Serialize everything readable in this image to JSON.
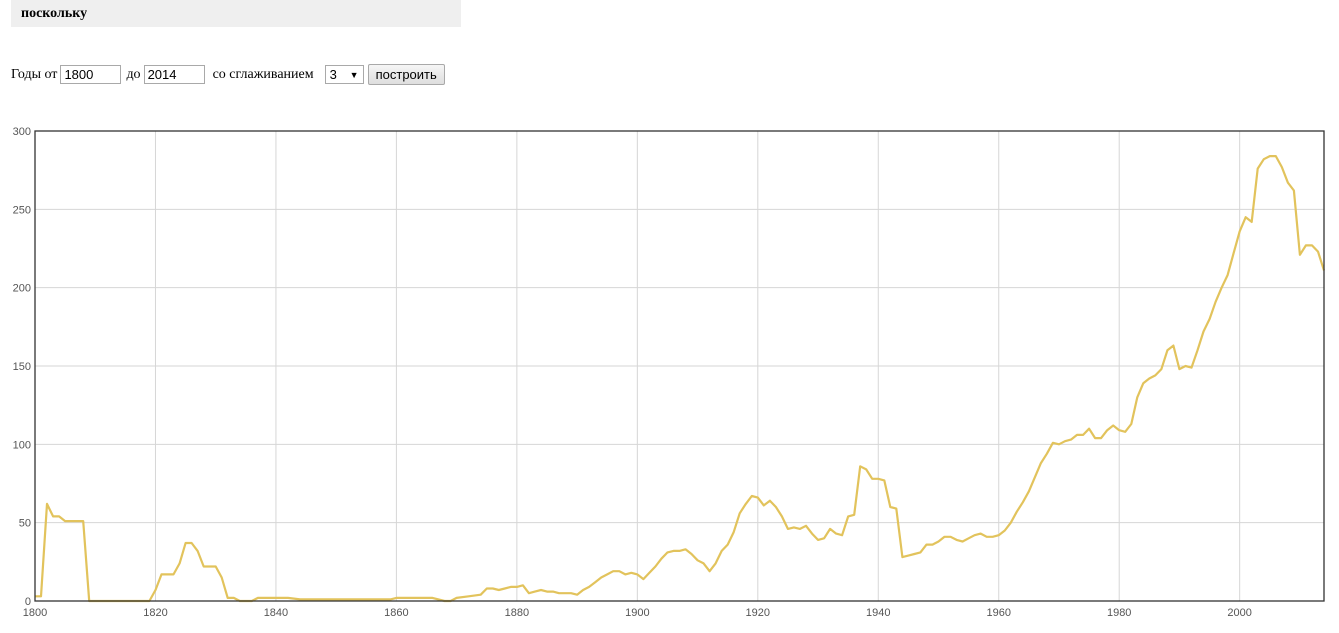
{
  "query": {
    "word": "поскольку"
  },
  "controls": {
    "years_from_label": "Годы от",
    "year_from": "1800",
    "to_label": "до",
    "year_to": "2014",
    "smoothing_label": "со сглаживанием",
    "smoothing_value": "3",
    "build_button": "построить"
  },
  "chart_data": {
    "type": "line",
    "xlim": [
      1800,
      2014
    ],
    "ylim": [
      0,
      300
    ],
    "x_ticks": [
      1800,
      1820,
      1840,
      1860,
      1880,
      1900,
      1920,
      1940,
      1960,
      1980,
      2000
    ],
    "y_ticks": [
      0,
      50,
      100,
      150,
      200,
      250,
      300
    ],
    "grid": true,
    "line_color": "#e2c35c",
    "series": [
      {
        "points": [
          [
            1800,
            3
          ],
          [
            1801,
            3
          ],
          [
            1802,
            62
          ],
          [
            1803,
            54
          ],
          [
            1804,
            54
          ],
          [
            1805,
            51
          ],
          [
            1806,
            51
          ],
          [
            1807,
            51
          ],
          [
            1808,
            51
          ],
          [
            1809,
            0
          ],
          [
            1810,
            0
          ],
          [
            1812,
            0
          ],
          [
            1814,
            0
          ],
          [
            1816,
            0
          ],
          [
            1818,
            0
          ],
          [
            1819,
            0
          ],
          [
            1820,
            7
          ],
          [
            1821,
            17
          ],
          [
            1822,
            17
          ],
          [
            1823,
            17
          ],
          [
            1824,
            24
          ],
          [
            1825,
            37
          ],
          [
            1826,
            37
          ],
          [
            1827,
            32
          ],
          [
            1828,
            22
          ],
          [
            1829,
            22
          ],
          [
            1830,
            22
          ],
          [
            1831,
            15
          ],
          [
            1832,
            2
          ],
          [
            1833,
            2
          ],
          [
            1834,
            0
          ],
          [
            1836,
            0
          ],
          [
            1837,
            2
          ],
          [
            1838,
            2
          ],
          [
            1840,
            2
          ],
          [
            1842,
            2
          ],
          [
            1844,
            1
          ],
          [
            1848,
            1
          ],
          [
            1852,
            1
          ],
          [
            1856,
            1
          ],
          [
            1859,
            1
          ],
          [
            1860,
            2
          ],
          [
            1862,
            2
          ],
          [
            1864,
            2
          ],
          [
            1866,
            2
          ],
          [
            1868,
            0
          ],
          [
            1869,
            0
          ],
          [
            1870,
            2
          ],
          [
            1872,
            3
          ],
          [
            1874,
            4
          ],
          [
            1875,
            8
          ],
          [
            1876,
            8
          ],
          [
            1877,
            7
          ],
          [
            1878,
            8
          ],
          [
            1879,
            9
          ],
          [
            1880,
            9
          ],
          [
            1881,
            10
          ],
          [
            1882,
            5
          ],
          [
            1883,
            6
          ],
          [
            1884,
            7
          ],
          [
            1885,
            6
          ],
          [
            1886,
            6
          ],
          [
            1887,
            5
          ],
          [
            1888,
            5
          ],
          [
            1889,
            5
          ],
          [
            1890,
            4
          ],
          [
            1891,
            7
          ],
          [
            1892,
            9
          ],
          [
            1893,
            12
          ],
          [
            1894,
            15
          ],
          [
            1895,
            17
          ],
          [
            1896,
            19
          ],
          [
            1897,
            19
          ],
          [
            1898,
            17
          ],
          [
            1899,
            18
          ],
          [
            1900,
            17
          ],
          [
            1901,
            14
          ],
          [
            1902,
            18
          ],
          [
            1903,
            22
          ],
          [
            1904,
            27
          ],
          [
            1905,
            31
          ],
          [
            1906,
            32
          ],
          [
            1907,
            32
          ],
          [
            1908,
            33
          ],
          [
            1909,
            30
          ],
          [
            1910,
            26
          ],
          [
            1911,
            24
          ],
          [
            1912,
            19
          ],
          [
            1913,
            24
          ],
          [
            1914,
            32
          ],
          [
            1915,
            36
          ],
          [
            1916,
            44
          ],
          [
            1917,
            56
          ],
          [
            1918,
            62
          ],
          [
            1919,
            67
          ],
          [
            1920,
            66
          ],
          [
            1921,
            61
          ],
          [
            1922,
            64
          ],
          [
            1923,
            60
          ],
          [
            1924,
            54
          ],
          [
            1925,
            46
          ],
          [
            1926,
            47
          ],
          [
            1927,
            46
          ],
          [
            1928,
            48
          ],
          [
            1929,
            43
          ],
          [
            1930,
            39
          ],
          [
            1931,
            40
          ],
          [
            1932,
            46
          ],
          [
            1933,
            43
          ],
          [
            1934,
            42
          ],
          [
            1935,
            54
          ],
          [
            1936,
            55
          ],
          [
            1937,
            86
          ],
          [
            1938,
            84
          ],
          [
            1939,
            78
          ],
          [
            1940,
            78
          ],
          [
            1941,
            77
          ],
          [
            1942,
            60
          ],
          [
            1943,
            59
          ],
          [
            1944,
            28
          ],
          [
            1945,
            29
          ],
          [
            1946,
            30
          ],
          [
            1947,
            31
          ],
          [
            1948,
            36
          ],
          [
            1949,
            36
          ],
          [
            1950,
            38
          ],
          [
            1951,
            41
          ],
          [
            1952,
            41
          ],
          [
            1953,
            39
          ],
          [
            1954,
            38
          ],
          [
            1955,
            40
          ],
          [
            1956,
            42
          ],
          [
            1957,
            43
          ],
          [
            1958,
            41
          ],
          [
            1959,
            41
          ],
          [
            1960,
            42
          ],
          [
            1961,
            45
          ],
          [
            1962,
            50
          ],
          [
            1963,
            57
          ],
          [
            1964,
            63
          ],
          [
            1965,
            70
          ],
          [
            1966,
            79
          ],
          [
            1967,
            88
          ],
          [
            1968,
            94
          ],
          [
            1969,
            101
          ],
          [
            1970,
            100
          ],
          [
            1971,
            102
          ],
          [
            1972,
            103
          ],
          [
            1973,
            106
          ],
          [
            1974,
            106
          ],
          [
            1975,
            110
          ],
          [
            1976,
            104
          ],
          [
            1977,
            104
          ],
          [
            1978,
            109
          ],
          [
            1979,
            112
          ],
          [
            1980,
            109
          ],
          [
            1981,
            108
          ],
          [
            1982,
            113
          ],
          [
            1983,
            130
          ],
          [
            1984,
            139
          ],
          [
            1985,
            142
          ],
          [
            1986,
            144
          ],
          [
            1987,
            148
          ],
          [
            1988,
            160
          ],
          [
            1989,
            163
          ],
          [
            1990,
            148
          ],
          [
            1991,
            150
          ],
          [
            1992,
            149
          ],
          [
            1993,
            160
          ],
          [
            1994,
            172
          ],
          [
            1995,
            180
          ],
          [
            1996,
            191
          ],
          [
            1997,
            200
          ],
          [
            1998,
            208
          ],
          [
            1999,
            222
          ],
          [
            2000,
            236
          ],
          [
            2001,
            245
          ],
          [
            2002,
            242
          ],
          [
            2003,
            276
          ],
          [
            2004,
            282
          ],
          [
            2005,
            284
          ],
          [
            2006,
            284
          ],
          [
            2007,
            277
          ],
          [
            2008,
            267
          ],
          [
            2009,
            262
          ],
          [
            2010,
            221
          ],
          [
            2011,
            227
          ],
          [
            2012,
            227
          ],
          [
            2013,
            223
          ],
          [
            2014,
            211
          ]
        ]
      }
    ]
  }
}
